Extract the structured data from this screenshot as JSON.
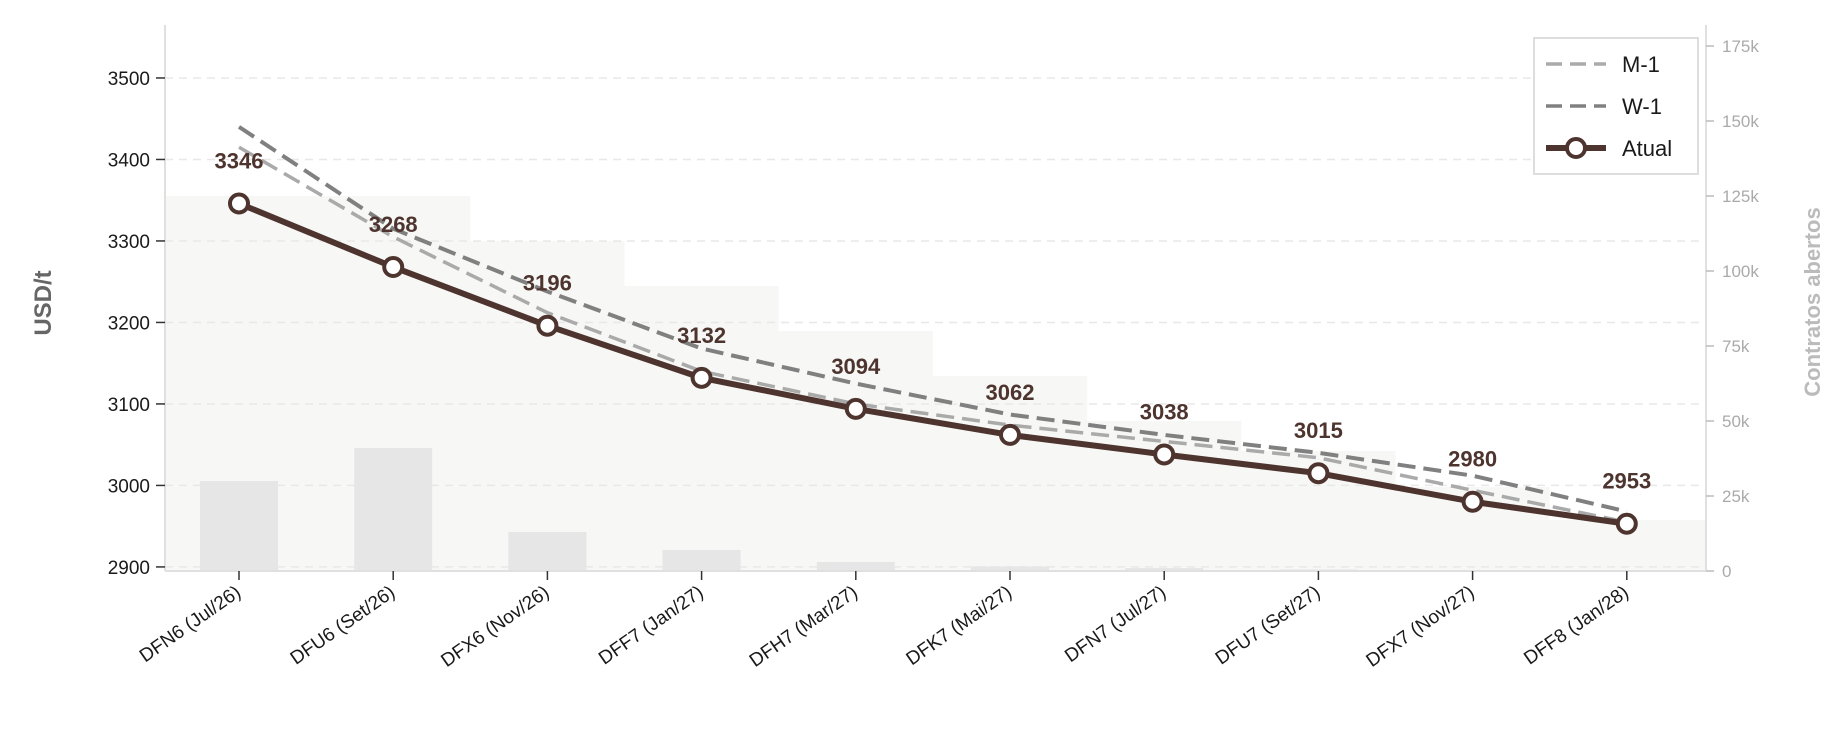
{
  "chart_data": {
    "type": "line",
    "categories": [
      "DFN6 (Jul/26)",
      "DFU6 (Set/26)",
      "DFX6 (Nov/26)",
      "DFF7 (Jan/27)",
      "DFH7 (Mar/27)",
      "DFK7 (Mai/27)",
      "DFN7 (Jul/27)",
      "DFU7 (Set/27)",
      "DFX7 (Nov/27)",
      "DFF8 (Jan/28)"
    ],
    "series": [
      {
        "name": "M-1",
        "style": "dashed",
        "color": "#aaaaaa",
        "values": [
          3415,
          3305,
          3212,
          3140,
          3100,
          3074,
          3054,
          3034,
          2994,
          2955
        ]
      },
      {
        "name": "W-1",
        "style": "dashed",
        "color": "#808080",
        "values": [
          3440,
          3315,
          3238,
          3168,
          3125,
          3087,
          3062,
          3040,
          3012,
          2968
        ]
      },
      {
        "name": "Atual",
        "style": "solid",
        "color": "#4e342e",
        "marker": "circle",
        "values": [
          3346,
          3268,
          3196,
          3132,
          3094,
          3062,
          3038,
          3015,
          2980,
          2953
        ]
      }
    ],
    "data_labels": [
      "3346",
      "3268",
      "3196",
      "3132",
      "3094",
      "3062",
      "3038",
      "3015",
      "2980",
      "2953"
    ],
    "open_interest": {
      "axis": "right",
      "color": "#e6e6e6",
      "values": [
        30000,
        41000,
        13000,
        7000,
        3000,
        1500,
        1000,
        500,
        300,
        200
      ]
    },
    "open_interest_area": {
      "color": "#f7f7f5",
      "values": [
        125000,
        125000,
        110000,
        95000,
        80000,
        65000,
        50000,
        40000,
        28000,
        17000
      ]
    },
    "ylabel": "USD/t",
    "y2label": "Contratos abertos",
    "ylim": [
      2895,
      3565
    ],
    "yticks": [
      "2900",
      "3000",
      "3100",
      "3200",
      "3300",
      "3400",
      "3500"
    ],
    "y2lim": [
      0,
      182000
    ],
    "y2ticks": [
      "0",
      "25k",
      "50k",
      "75k",
      "100k",
      "125k",
      "150k",
      "175k"
    ],
    "grid": "horizontal-dashed",
    "legend": "top-right"
  }
}
